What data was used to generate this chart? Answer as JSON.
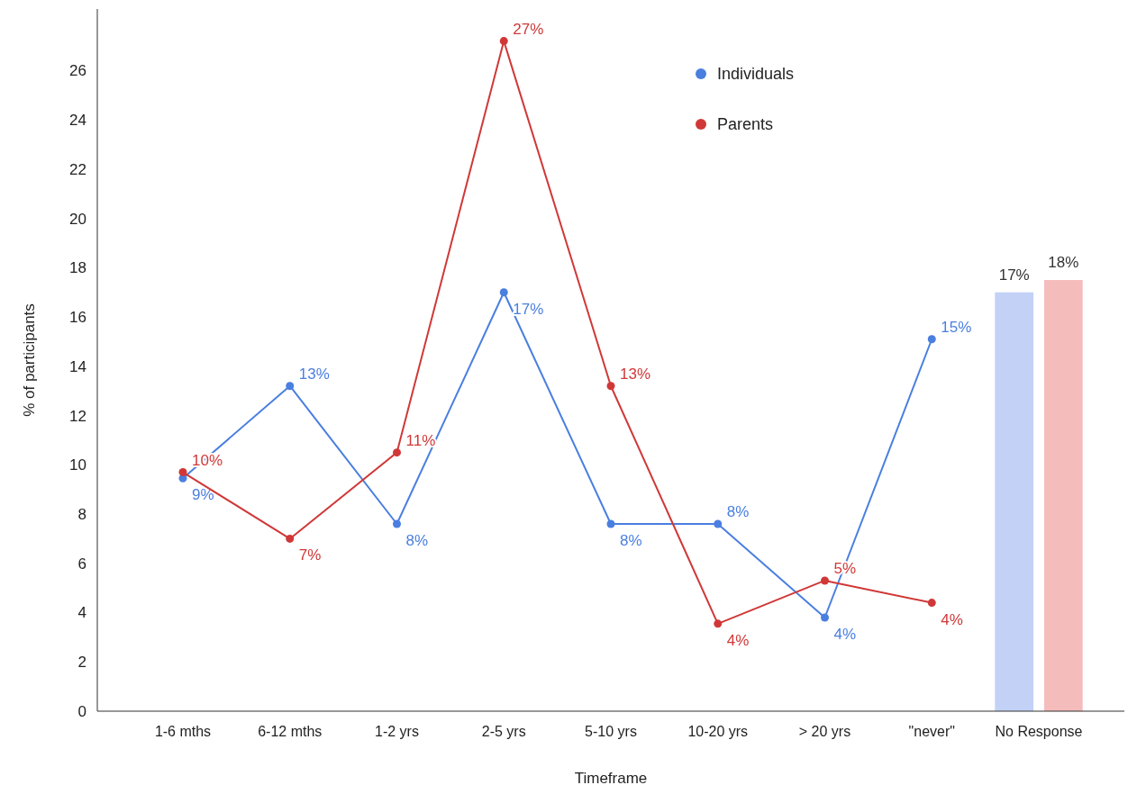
{
  "chart_data": {
    "type": "line",
    "xlabel": "Timeframe",
    "ylabel": "% of participants",
    "categories": [
      "1-6 mths",
      "6-12 mths",
      "1-2 yrs",
      "2-5 yrs",
      "5-10 yrs",
      "10-20 yrs",
      "> 20 yrs",
      "\"never\"",
      "No Response"
    ],
    "ylim": [
      0,
      28.5
    ],
    "yticks": [
      0,
      2,
      4,
      6,
      8,
      10,
      12,
      14,
      16,
      18,
      20,
      22,
      24,
      26
    ],
    "grid": false,
    "legend": "top right",
    "marker": "circle",
    "line_style": "solid",
    "series": [
      {
        "name": "Individuals",
        "color": "#4a7fe0",
        "values": [
          9.45,
          13.2,
          7.6,
          17.0,
          7.6,
          7.6,
          3.8,
          15.1,
          null
        ],
        "value_labels": [
          "9%",
          "13%",
          "8%",
          "17%",
          "8%",
          "8%",
          "4%",
          "15%",
          null
        ]
      },
      {
        "name": "Parents",
        "color": "#d03838",
        "values": [
          9.7,
          7.0,
          10.5,
          27.2,
          13.2,
          3.55,
          5.3,
          4.4,
          null
        ],
        "value_labels": [
          "10%",
          "7%",
          "11%",
          "27%",
          "13%",
          "4%",
          "5%",
          "4%",
          null
        ]
      },
      {
        "type": "bar",
        "color": "#c3d1f7",
        "values": [
          null,
          null,
          null,
          null,
          null,
          null,
          null,
          null,
          17.0
        ],
        "value_labels": [
          null,
          null,
          null,
          null,
          null,
          null,
          null,
          null,
          "17%"
        ]
      },
      {
        "type": "bar",
        "color": "#f5bcbc",
        "values": [
          null,
          null,
          null,
          null,
          null,
          null,
          null,
          null,
          17.5
        ],
        "value_labels": [
          null,
          null,
          null,
          null,
          null,
          null,
          null,
          null,
          "18%"
        ]
      }
    ]
  }
}
